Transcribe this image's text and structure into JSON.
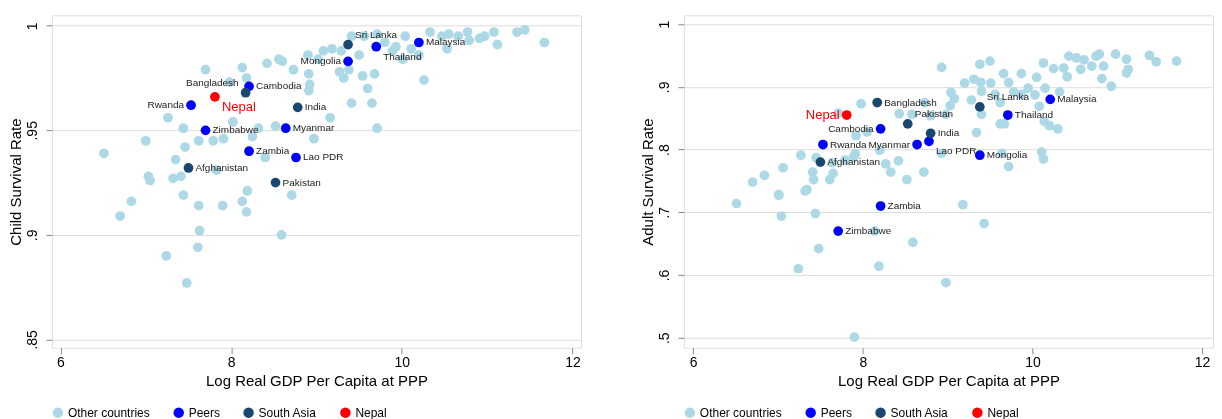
{
  "chart_data": [
    {
      "type": "scatter",
      "xlabel": "Log Real GDP Per Capita at PPP",
      "ylabel": "Child Survival Rate",
      "xlim": [
        5.9,
        12.1
      ],
      "ylim": [
        0.846,
        1.005
      ],
      "xticks": [
        6,
        8,
        10,
        12
      ],
      "yticks": [
        {
          "value": 0.85,
          "label": ".85"
        },
        {
          "value": 0.9,
          "label": ".9"
        },
        {
          "value": 0.95,
          "label": ".95"
        },
        {
          "value": 1,
          "label": "1"
        }
      ],
      "grid": "y",
      "legend": "bottom",
      "marker": "circle",
      "series": [
        {
          "name": "Other countries",
          "color": "#add8e6",
          "x": [
            6.51,
            7.0,
            7.26,
            7.44,
            7.46,
            7.35,
            7.62,
            7.79,
            7.91,
            7.7,
            7.98,
            8.13,
            8.18,
            8.02,
            8.25,
            8.32,
            8.52,
            8.42,
            8.56,
            8.6,
            8.73,
            8.4,
            8.9,
            8.91,
            8.92,
            8.91,
            9.02,
            9.08,
            8.97,
            9.16,
            9.18,
            9.29,
            9.27,
            9.32,
            9.38,
            9.41,
            9.5,
            9.54,
            9.6,
            9.65,
            9.68,
            9.71,
            9.71,
            9.89,
            10.01,
            10.11,
            10.26,
            10.2,
            10.53,
            10.04,
            10.33,
            10.55,
            10.77,
            10.79,
            10.91,
            10.97,
            11.08,
            11.12,
            11.35,
            11.44,
            11.67,
            10.66,
            10.47,
            9.41,
            9.56,
            9.8,
            9.93,
            7.03,
            7.05,
            7.32,
            7.41,
            7.83,
            8.19,
            8.71,
            7.44,
            6.83,
            6.7,
            7.62,
            7.9,
            8.13,
            8.18,
            7.63,
            8.59,
            7.61,
            7.24,
            7.48
          ],
          "values": [
            0.939,
            0.945,
            0.956,
            0.951,
            0.942,
            0.936,
            0.945,
            0.945,
            0.946,
            0.979,
            0.973,
            0.98,
            0.975,
            0.954,
            0.947,
            0.951,
            0.952,
            0.982,
            0.984,
            0.983,
            0.979,
            0.937,
            0.986,
            0.977,
            0.972,
            0.969,
            0.984,
            0.988,
            0.946,
            0.956,
            0.989,
            0.988,
            0.978,
            0.975,
            0.979,
            0.963,
            0.986,
            0.976,
            0.97,
            0.963,
            0.977,
            0.996,
            0.951,
            0.988,
            0.984,
            0.989,
            0.974,
            0.986,
            0.989,
            0.995,
            0.997,
            0.996,
            0.997,
            0.993,
            0.994,
            0.995,
            0.997,
            0.991,
            0.997,
            0.998,
            0.992,
            0.995,
            0.995,
            0.995,
            0.995,
            0.992,
            0.99,
            0.928,
            0.926,
            0.927,
            0.928,
            0.931,
            0.921,
            0.919,
            0.919,
            0.916,
            0.909,
            0.914,
            0.914,
            0.916,
            0.911,
            0.902,
            0.9,
            0.894,
            0.89,
            0.877
          ]
        },
        {
          "name": "Peers",
          "color": "#0000ff",
          "x": [
            9.7,
            10.2,
            9.37,
            8.21,
            7.53,
            7.7,
            8.64,
            8.21,
            8.76
          ],
          "values": [
            0.99,
            0.992,
            0.983,
            0.971,
            0.962,
            0.95,
            0.951,
            0.94,
            0.937
          ]
        },
        {
          "name": "South Asia",
          "color": "#1a476f",
          "x": [
            9.37,
            8.17,
            8.78,
            7.5,
            8.52
          ],
          "values": [
            0.991,
            0.968,
            0.961,
            0.932,
            0.925
          ]
        },
        {
          "name": "Nepal",
          "color": "#ff0000",
          "x": [
            7.81
          ],
          "values": [
            0.966
          ]
        }
      ],
      "annotations": [
        {
          "text": "Sri Lanka",
          "x": 9.37,
          "y": 0.991
        },
        {
          "text": "Thailand",
          "x": 9.7,
          "y": 0.99
        },
        {
          "text": "Malaysia",
          "x": 10.2,
          "y": 0.992
        },
        {
          "text": "Mongolia",
          "x": 9.37,
          "y": 0.983
        },
        {
          "text": "Cambodia",
          "x": 8.21,
          "y": 0.971
        },
        {
          "text": "Bangladesh",
          "x": 8.17,
          "y": 0.968
        },
        {
          "text": "Nepal",
          "x": 7.81,
          "y": 0.966
        },
        {
          "text": "Rwanda",
          "x": 7.53,
          "y": 0.962
        },
        {
          "text": "India",
          "x": 8.78,
          "y": 0.961
        },
        {
          "text": "Zimbabwe",
          "x": 7.7,
          "y": 0.95
        },
        {
          "text": "Myanmar",
          "x": 8.64,
          "y": 0.951
        },
        {
          "text": "Zambia",
          "x": 8.21,
          "y": 0.94
        },
        {
          "text": "Lao PDR",
          "x": 8.76,
          "y": 0.937
        },
        {
          "text": "Afghanistan",
          "x": 7.5,
          "y": 0.932
        },
        {
          "text": "Pakistan",
          "x": 8.52,
          "y": 0.925
        }
      ]
    },
    {
      "type": "scatter",
      "xlabel": "Log Real GDP Per Capita at PPP",
      "ylabel": "Adult Survival Rate",
      "xlim": [
        5.89,
        12.13
      ],
      "ylim": [
        0.484,
        1.014
      ],
      "xticks": [
        6,
        8,
        10,
        12
      ],
      "yticks": [
        {
          "value": 0.5,
          "label": ".5"
        },
        {
          "value": 0.6,
          "label": ".6"
        },
        {
          "value": 0.7,
          "label": ".7"
        },
        {
          "value": 0.8,
          "label": ".8"
        },
        {
          "value": 0.9,
          "label": ".9"
        },
        {
          "value": 1,
          "label": "1"
        }
      ],
      "grid": "y",
      "legend": "bottom",
      "marker": "circle",
      "series": [
        {
          "name": "Other countries",
          "color": "#add8e6",
          "x": [
            8.93,
            9.2,
            9.31,
            9.39,
            9.38,
            9.5,
            9.51,
            9.66,
            9.72,
            9.87,
            10.05,
            10.13,
            10.25,
            10.37,
            10.41,
            10.43,
            10.52,
            10.57,
            10.61,
            10.7,
            10.75,
            10.79,
            10.84,
            10.82,
            10.93,
            10.98,
            11.11,
            11.13,
            11.11,
            11.38,
            11.46,
            11.7,
            9.04,
            9.08,
            9.03,
            9.28,
            9.4,
            9.56,
            9.78,
            9.87,
            9.95,
            10.03,
            10.15,
            10.32,
            10.08,
            9.62,
            9.4,
            9.62,
            9.67,
            10.14,
            10.2,
            10.3,
            9.34,
            8.98,
            8.8,
            8.73,
            8.58,
            8.43,
            7.98,
            7.71,
            7.92,
            8.05,
            8.2,
            8.42,
            8.27,
            8.33,
            8.52,
            8.72,
            8.93,
            7.91,
            7.79,
            7.89,
            7.64,
            7.65,
            7.45,
            7.27,
            7.06,
            6.84,
            6.7,
            7.01,
            7.34,
            7.41,
            7.42,
            7.61,
            9.64,
            9.72,
            10.11,
            10.13,
            6.51,
            7.01,
            7.32,
            7.04,
            7.44,
            8.14,
            7.48,
            8.59,
            7.24,
            8.19,
            8.98,
            9.18,
            9.43,
            7.9
          ],
          "values": [
            0.931,
            0.906,
            0.912,
            0.907,
            0.936,
            0.941,
            0.906,
            0.921,
            0.907,
            0.921,
            0.915,
            0.938,
            0.929,
            0.93,
            0.916,
            0.949,
            0.946,
            0.928,
            0.943,
            0.933,
            0.949,
            0.952,
            0.933,
            0.913,
            0.901,
            0.952,
            0.944,
            0.928,
            0.922,
            0.95,
            0.94,
            0.941,
            0.891,
            0.881,
            0.87,
            0.879,
            0.893,
            0.888,
            0.892,
            0.888,
            0.898,
            0.887,
            0.898,
            0.892,
            0.869,
            0.875,
            0.856,
            0.841,
            0.841,
            0.845,
            0.838,
            0.833,
            0.827,
            0.856,
            0.854,
            0.875,
            0.856,
            0.857,
            0.873,
            0.858,
            0.822,
            0.828,
            0.799,
            0.782,
            0.777,
            0.764,
            0.752,
            0.764,
            0.794,
            0.793,
            0.783,
            0.788,
            0.779,
            0.762,
            0.787,
            0.791,
            0.771,
            0.759,
            0.748,
            0.728,
            0.736,
            0.764,
            0.752,
            0.752,
            0.794,
            0.773,
            0.796,
            0.785,
            0.714,
            0.727,
            0.734,
            0.694,
            0.698,
            0.67,
            0.642,
            0.652,
            0.61,
            0.614,
            0.588,
            0.712,
            0.682,
            0.501
          ]
        },
        {
          "name": "Peers",
          "color": "#0000ff",
          "x": [
            9.71,
            10.21,
            8.21,
            8.78,
            8.64,
            7.53,
            9.38,
            8.21,
            7.71
          ],
          "values": [
            0.855,
            0.88,
            0.833,
            0.813,
            0.808,
            0.808,
            0.791,
            0.71,
            0.67
          ]
        },
        {
          "name": "South Asia",
          "color": "#1a476f",
          "x": [
            8.17,
            9.38,
            8.53,
            8.8,
            7.5
          ],
          "values": [
            0.875,
            0.868,
            0.841,
            0.826,
            0.78
          ]
        },
        {
          "name": "Nepal",
          "color": "#ff0000",
          "x": [
            7.81
          ],
          "values": [
            0.855
          ]
        }
      ],
      "annotations": [
        {
          "text": "Bangladesh",
          "x": 8.17,
          "y": 0.875
        },
        {
          "text": "Nepal",
          "x": 7.81,
          "y": 0.855
        },
        {
          "text": "Sri Lanka",
          "x": 9.38,
          "y": 0.868
        },
        {
          "text": "Thailand",
          "x": 9.71,
          "y": 0.855
        },
        {
          "text": "Malaysia",
          "x": 10.21,
          "y": 0.88
        },
        {
          "text": "Pakistan",
          "x": 8.53,
          "y": 0.841
        },
        {
          "text": "Cambodia",
          "x": 8.21,
          "y": 0.833
        },
        {
          "text": "India",
          "x": 8.8,
          "y": 0.826
        },
        {
          "text": "Lao PDR",
          "x": 8.78,
          "y": 0.813
        },
        {
          "text": "Myanmar",
          "x": 8.64,
          "y": 0.808
        },
        {
          "text": "Rwanda",
          "x": 7.53,
          "y": 0.808
        },
        {
          "text": "Mongolia",
          "x": 9.38,
          "y": 0.791
        },
        {
          "text": "Afghanistan",
          "x": 7.5,
          "y": 0.78
        },
        {
          "text": "Zambia",
          "x": 8.21,
          "y": 0.71
        },
        {
          "text": "Zimbabwe",
          "x": 7.71,
          "y": 0.67
        }
      ]
    }
  ]
}
